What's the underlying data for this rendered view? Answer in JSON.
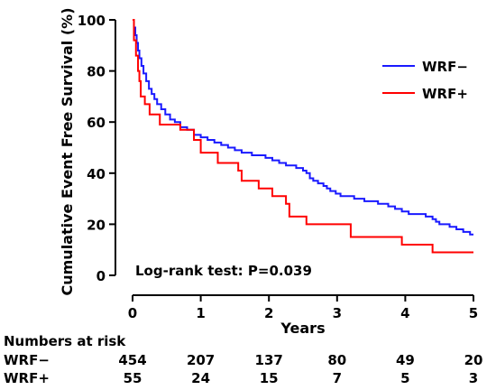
{
  "chart_data": {
    "type": "line",
    "chart_style": "step",
    "xlabel": "Years",
    "ylabel": "Cumulative Event Free Survival (%)",
    "xlim": [
      0,
      5
    ],
    "ylim": [
      0,
      100
    ],
    "xticks": [
      0,
      1,
      2,
      3,
      4,
      5
    ],
    "yticks": [
      0,
      20,
      40,
      60,
      80,
      100
    ],
    "grid": false,
    "legend_position": "top-right",
    "annotation": "Log-rank test: P=0.039",
    "series": [
      {
        "name": "WRF−",
        "color": "#1a1aff",
        "points": [
          [
            0,
            100
          ],
          [
            0.02,
            97
          ],
          [
            0.04,
            94
          ],
          [
            0.06,
            91
          ],
          [
            0.08,
            88
          ],
          [
            0.1,
            85
          ],
          [
            0.13,
            82
          ],
          [
            0.16,
            79
          ],
          [
            0.2,
            76
          ],
          [
            0.24,
            73
          ],
          [
            0.28,
            71
          ],
          [
            0.32,
            69
          ],
          [
            0.36,
            67
          ],
          [
            0.42,
            65
          ],
          [
            0.48,
            63
          ],
          [
            0.55,
            61
          ],
          [
            0.62,
            60
          ],
          [
            0.7,
            58
          ],
          [
            0.8,
            57
          ],
          [
            0.9,
            55
          ],
          [
            1.0,
            54
          ],
          [
            1.1,
            53
          ],
          [
            1.2,
            52
          ],
          [
            1.3,
            51
          ],
          [
            1.4,
            50
          ],
          [
            1.5,
            49
          ],
          [
            1.6,
            48
          ],
          [
            1.75,
            47
          ],
          [
            1.95,
            46
          ],
          [
            2.05,
            45
          ],
          [
            2.15,
            44
          ],
          [
            2.25,
            43
          ],
          [
            2.4,
            42
          ],
          [
            2.5,
            41
          ],
          [
            2.55,
            40
          ],
          [
            2.6,
            38
          ],
          [
            2.65,
            37
          ],
          [
            2.72,
            36
          ],
          [
            2.8,
            35
          ],
          [
            2.85,
            34
          ],
          [
            2.9,
            33
          ],
          [
            2.98,
            32
          ],
          [
            3.05,
            31
          ],
          [
            3.25,
            30
          ],
          [
            3.4,
            29
          ],
          [
            3.6,
            28
          ],
          [
            3.75,
            27
          ],
          [
            3.85,
            26
          ],
          [
            3.95,
            25
          ],
          [
            4.05,
            24
          ],
          [
            4.3,
            23
          ],
          [
            4.4,
            22
          ],
          [
            4.45,
            21
          ],
          [
            4.5,
            20
          ],
          [
            4.65,
            19
          ],
          [
            4.75,
            18
          ],
          [
            4.85,
            17
          ],
          [
            4.95,
            16
          ],
          [
            5.0,
            16
          ]
        ]
      },
      {
        "name": "WRF+",
        "color": "#ff0000",
        "points": [
          [
            0,
            100
          ],
          [
            0.02,
            92
          ],
          [
            0.05,
            86
          ],
          [
            0.08,
            80
          ],
          [
            0.1,
            76
          ],
          [
            0.12,
            70
          ],
          [
            0.18,
            67
          ],
          [
            0.25,
            63
          ],
          [
            0.4,
            59
          ],
          [
            0.7,
            57
          ],
          [
            0.9,
            53
          ],
          [
            1.0,
            48
          ],
          [
            1.25,
            44
          ],
          [
            1.55,
            41
          ],
          [
            1.6,
            37
          ],
          [
            1.85,
            34
          ],
          [
            2.05,
            31
          ],
          [
            2.25,
            28
          ],
          [
            2.3,
            23
          ],
          [
            2.55,
            20
          ],
          [
            3.2,
            15
          ],
          [
            3.95,
            12
          ],
          [
            4.4,
            9
          ],
          [
            5.0,
            9
          ]
        ]
      }
    ]
  },
  "risk_table": {
    "title": "Numbers at risk",
    "rows": [
      {
        "label": "WRF−",
        "counts": [
          "454",
          "207",
          "137",
          "80",
          "49",
          "20"
        ]
      },
      {
        "label": "WRF+",
        "counts": [
          "55",
          "24",
          "15",
          "7",
          "5",
          "3"
        ]
      }
    ]
  }
}
